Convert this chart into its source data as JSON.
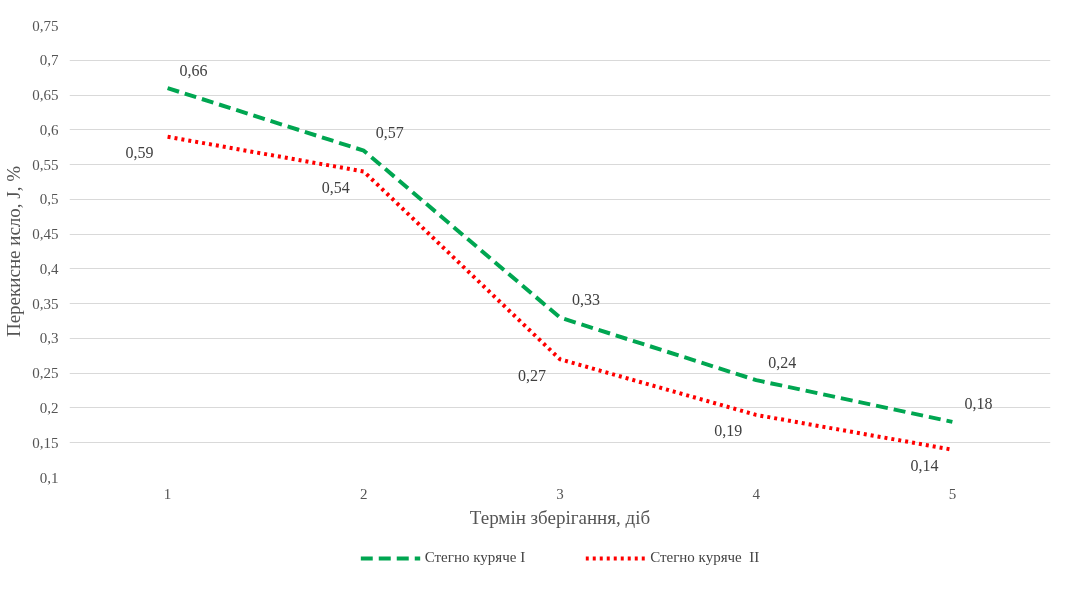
{
  "chart_data": {
    "type": "line",
    "xlabel": "Термін зберігання, діб",
    "ylabel": "Перекисне исло, J, %",
    "categories": [
      "1",
      "2",
      "3",
      "4",
      "5"
    ],
    "series": [
      {
        "name": "Стегно куряче I",
        "color": "#00a651",
        "line_style": "dashed",
        "values": [
          0.66,
          0.57,
          0.33,
          0.24,
          0.18
        ],
        "value_labels": [
          "0,66",
          "0,57",
          "0,33",
          "0,24",
          "0,18"
        ]
      },
      {
        "name": "Стегно куряче  II",
        "color": "#ff0000",
        "line_style": "dotted",
        "values": [
          0.59,
          0.54,
          0.27,
          0.19,
          0.14
        ],
        "value_labels": [
          "0,59",
          "0,54",
          "0,27",
          "0,19",
          "0,14"
        ]
      }
    ],
    "ylim": [
      0.1,
      0.75
    ],
    "yticks": [
      {
        "value": 0.1,
        "label": "0,1"
      },
      {
        "value": 0.15,
        "label": "0,15"
      },
      {
        "value": 0.2,
        "label": "0,2"
      },
      {
        "value": 0.25,
        "label": "0,25"
      },
      {
        "value": 0.3,
        "label": "0,3"
      },
      {
        "value": 0.35,
        "label": "0,35"
      },
      {
        "value": 0.4,
        "label": "0,4"
      },
      {
        "value": 0.45,
        "label": "0,45"
      },
      {
        "value": 0.5,
        "label": "0,5"
      },
      {
        "value": 0.55,
        "label": "0,55"
      },
      {
        "value": 0.6,
        "label": "0,6"
      },
      {
        "value": 0.65,
        "label": "0,65"
      },
      {
        "value": 0.7,
        "label": "0,7"
      },
      {
        "value": 0.75,
        "label": "0,75"
      }
    ],
    "grid": "y",
    "legend": "bottom",
    "marker": "none"
  }
}
